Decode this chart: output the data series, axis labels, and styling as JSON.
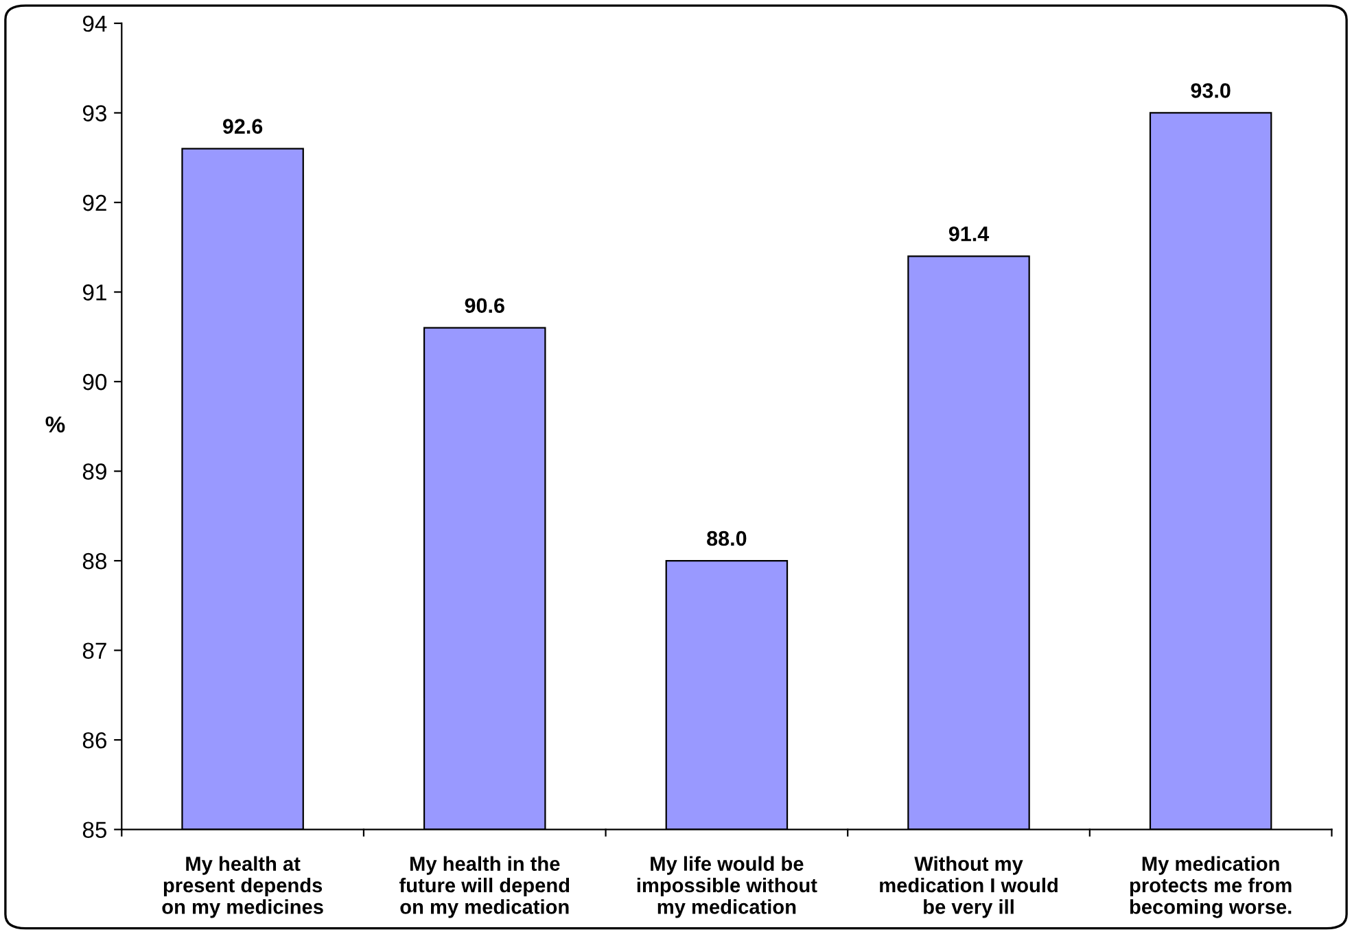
{
  "chart_data": {
    "type": "bar",
    "ylabel": "%",
    "categories": [
      "My health at\npresent depends\non my medicines",
      "My health in the\nfuture will depend\non my medication",
      "My life would be\nimpossible without\nmy medication",
      "Without my\nmedication I would\nbe very ill",
      "My medication\nprotects me from\nbecoming worse."
    ],
    "values": [
      92.6,
      90.6,
      88.0,
      91.4,
      93.0
    ],
    "value_labels": [
      "92.6",
      "90.6",
      "88.0",
      "91.4",
      "93.0"
    ],
    "color": "#9999ff",
    "ylim": [
      85,
      94
    ],
    "yticks": [
      85,
      86,
      87,
      88,
      89,
      90,
      91,
      92,
      93,
      94
    ],
    "grid": false
  }
}
